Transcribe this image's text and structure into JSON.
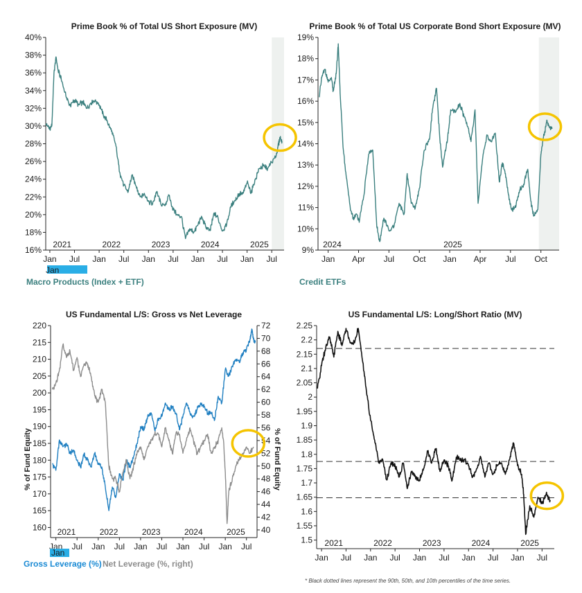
{
  "colors": {
    "teal": "#3a7f7e",
    "blue": "#1f7fc1",
    "gray": "#8c8c8c",
    "black": "#111111",
    "highlight_circle": "#f5c400",
    "shade": "#eef1ef",
    "legend_teal": "#3a7f7e",
    "legend_blue": "#1a8ad4",
    "legend_gray": "#8c8c8c",
    "tag_blue": "#2aaee6"
  },
  "legends": {
    "tl_tag": "Jan",
    "tl_label": "Macro Products (Index + ETF)",
    "tr_label": "Credit ETFs",
    "bl_tag": "Jan",
    "bl_gross": "Gross Leverage (%)",
    "bl_net": "Net Leverage (%, right)"
  },
  "footnote": "* Black dotted lines represent the 90th, 50th, and 10th percentiles of the time series.",
  "chart_data": [
    {
      "id": "tl",
      "type": "line",
      "title": "Prime Book % of Total US Short Exposure (MV)",
      "ylim": [
        16,
        40
      ],
      "ymin": 16,
      "ymax": 40,
      "yticks": [
        16,
        18,
        20,
        22,
        24,
        26,
        28,
        30,
        32,
        34,
        36,
        38,
        40
      ],
      "ytick_labels": [
        "16%",
        "18%",
        "20%",
        "22%",
        "24%",
        "26%",
        "28%",
        "30%",
        "32%",
        "34%",
        "36%",
        "38%",
        "40%"
      ],
      "xmin": 0,
      "xmax": 58,
      "year_ticks": [
        {
          "pos": 4,
          "label": "2021"
        },
        {
          "pos": 16,
          "label": "2022"
        },
        {
          "pos": 28,
          "label": "2023"
        },
        {
          "pos": 40,
          "label": "2024"
        },
        {
          "pos": 52,
          "label": "2025"
        }
      ],
      "month_ticks": [
        {
          "pos": 1,
          "label": "Jan"
        },
        {
          "pos": 7,
          "label": "Jul"
        },
        {
          "pos": 13,
          "label": "Jan"
        },
        {
          "pos": 19,
          "label": "Jul"
        },
        {
          "pos": 25,
          "label": "Jan"
        },
        {
          "pos": 31,
          "label": "Jul"
        },
        {
          "pos": 37,
          "label": "Jan"
        },
        {
          "pos": 43,
          "label": "Jul"
        },
        {
          "pos": 49,
          "label": "Jan"
        },
        {
          "pos": 55,
          "label": "Jul"
        }
      ],
      "shade_from": 55,
      "highlight": [
        57,
        28.7
      ],
      "series": [
        {
          "name": "Macro Products (Index + ETF)",
          "color": "teal",
          "x": [
            0,
            0.5,
            1,
            1.5,
            2,
            2.5,
            3,
            4,
            5,
            6,
            7,
            8,
            9,
            10,
            11,
            12,
            13,
            14,
            15,
            16,
            17,
            18,
            19,
            20,
            21,
            22,
            23,
            24,
            25,
            26,
            27,
            28,
            29,
            30,
            31,
            32,
            33,
            34,
            35,
            36,
            37,
            38,
            39,
            40,
            41,
            42,
            43,
            44,
            45,
            46,
            47,
            48,
            49,
            50,
            51,
            52,
            53,
            54,
            55,
            56,
            56.5,
            57,
            57.5
          ],
          "y": [
            30.2,
            30.0,
            29.6,
            30.1,
            36.0,
            37.8,
            36.3,
            35.0,
            33.2,
            32.3,
            32.9,
            32.4,
            32.7,
            32.0,
            32.6,
            32.9,
            32.4,
            31.3,
            30.5,
            29.4,
            28.0,
            24.8,
            23.3,
            22.5,
            24.5,
            23.2,
            22.0,
            22.4,
            21.5,
            21.2,
            22.6,
            21.2,
            21.0,
            22.2,
            20.6,
            20.0,
            19.8,
            17.3,
            18.4,
            18.0,
            18.8,
            19.7,
            18.5,
            18.2,
            20.2,
            19.5,
            18.2,
            18.8,
            20.9,
            21.6,
            22.3,
            22.4,
            23.6,
            22.5,
            24.0,
            25.2,
            25.5,
            25.2,
            25.9,
            26.5,
            27.6,
            28.7,
            28.3
          ]
        }
      ]
    },
    {
      "id": "tr",
      "type": "line",
      "title": "Prime Book % of Total US Corporate Bond Short Exposure (MV)",
      "ylim": [
        9,
        19
      ],
      "ymin": 9,
      "ymax": 19,
      "yticks": [
        9,
        10,
        11,
        12,
        13,
        14,
        15,
        16,
        17,
        18,
        19
      ],
      "ytick_labels": [
        "9%",
        "10%",
        "11%",
        "12%",
        "13%",
        "14%",
        "15%",
        "16%",
        "17%",
        "18%",
        "19%"
      ],
      "xmin": -1,
      "xmax": 22.8,
      "year_ticks": [
        {
          "pos": 0.4,
          "label": "2024"
        },
        {
          "pos": 12.3,
          "label": "2025"
        }
      ],
      "month_ticks": [
        {
          "pos": 0,
          "label": "Jan"
        },
        {
          "pos": 3,
          "label": "Apr"
        },
        {
          "pos": 6,
          "label": "Jul"
        },
        {
          "pos": 9,
          "label": "Oct"
        },
        {
          "pos": 12,
          "label": "Jan"
        },
        {
          "pos": 15,
          "label": "Apr"
        },
        {
          "pos": 18,
          "label": "Jul"
        },
        {
          "pos": 21,
          "label": "Oct"
        }
      ],
      "shade_from": 20.8,
      "highlight": [
        21.4,
        14.8
      ],
      "series": [
        {
          "name": "Credit ETFs",
          "color": "teal",
          "x": [
            -0.9,
            -0.6,
            -0.3,
            0,
            0.3,
            0.5,
            0.8,
            1.0,
            1.2,
            1.5,
            1.8,
            2.2,
            2.5,
            2.8,
            3.1,
            3.5,
            4.0,
            4.4,
            4.8,
            5.1,
            5.5,
            6.0,
            6.5,
            7.0,
            7.5,
            7.8,
            8.2,
            8.6,
            9.0,
            9.5,
            10.0,
            10.3,
            10.7,
            11.0,
            11.3,
            11.8,
            12.1,
            12.6,
            13.0,
            13.4,
            13.8,
            14.1,
            14.5,
            14.8,
            15.3,
            15.7,
            16.1,
            16.5,
            16.9,
            17.2,
            17.5,
            17.8,
            18.1,
            18.5,
            18.9,
            19.3,
            19.7,
            20.0,
            20.3,
            20.7,
            21.0,
            21.2,
            21.4,
            21.6,
            21.8,
            22.1
          ],
          "y": [
            16.2,
            17.2,
            17.5,
            16.9,
            17.1,
            16.5,
            17.3,
            18.7,
            16.2,
            13.7,
            12.4,
            10.9,
            10.5,
            10.7,
            10.4,
            11.5,
            13.5,
            13.7,
            10.1,
            9.4,
            10.5,
            9.9,
            10.1,
            11.2,
            10.7,
            12.6,
            11.2,
            11.0,
            11.9,
            13.7,
            14.2,
            15.6,
            16.6,
            14.4,
            12.9,
            14.3,
            15.6,
            15.5,
            15.9,
            15.3,
            14.8,
            14.1,
            15.6,
            11.2,
            13.5,
            14.4,
            14.1,
            14.5,
            12.2,
            13.1,
            12.6,
            11.6,
            10.9,
            11.0,
            11.8,
            12.1,
            12.8,
            11.3,
            10.6,
            10.9,
            13.5,
            14.2,
            14.6,
            15.1,
            14.8,
            14.7
          ]
        }
      ]
    },
    {
      "id": "bl",
      "type": "line",
      "title": "US Fundamental L/S: Gross vs Net Leverage",
      "ylabel": "% of Fund Equity",
      "ylabel_right": "% of Fund Equity",
      "ylim": [
        157,
        220
      ],
      "ymin": 157,
      "ymax": 220,
      "yticks": [
        160,
        165,
        170,
        175,
        180,
        185,
        190,
        195,
        200,
        205,
        210,
        215,
        220
      ],
      "ytick_labels": [
        "160",
        "165",
        "170",
        "175",
        "180",
        "185",
        "190",
        "195",
        "200",
        "205",
        "210",
        "215",
        "220"
      ],
      "ylim_right": [
        38.8,
        72
      ],
      "ymin2": 38.8,
      "ymax2": 72,
      "yticks_right": [
        40,
        42,
        44,
        46,
        48,
        50,
        52,
        54,
        56,
        58,
        60,
        62,
        64,
        66,
        68,
        70,
        72
      ],
      "ytick_labels_right": [
        "40",
        "42",
        "44",
        "46",
        "48",
        "50",
        "52",
        "54",
        "56",
        "58",
        "60",
        "62",
        "64",
        "66",
        "68",
        "70",
        "72"
      ],
      "xmin": -0.5,
      "xmax": 58,
      "year_ticks": [
        {
          "pos": 4,
          "label": "2021"
        },
        {
          "pos": 16,
          "label": "2022"
        },
        {
          "pos": 28,
          "label": "2023"
        },
        {
          "pos": 40,
          "label": "2024"
        },
        {
          "pos": 52,
          "label": "2025"
        }
      ],
      "month_ticks": [
        {
          "pos": 1,
          "label": "Jan"
        },
        {
          "pos": 7,
          "label": "Jul"
        },
        {
          "pos": 13,
          "label": "Jan"
        },
        {
          "pos": 19,
          "label": "Jul"
        },
        {
          "pos": 25,
          "label": "Jan"
        },
        {
          "pos": 31,
          "label": "Jul"
        },
        {
          "pos": 37,
          "label": "Jan"
        },
        {
          "pos": 43,
          "label": "Jul"
        },
        {
          "pos": 49,
          "label": "Jan"
        },
        {
          "pos": 55,
          "label": "Jul"
        }
      ],
      "highlight": [
        55.5,
        185
      ],
      "series": [
        {
          "name": "Gross Leverage (%)",
          "color": "blue",
          "axis": "left",
          "x": [
            0,
            1,
            2,
            3,
            4,
            5,
            6,
            7,
            8,
            9,
            10,
            11,
            12,
            13,
            14,
            15,
            16,
            17,
            18,
            19,
            20,
            21,
            22,
            23,
            24,
            25,
            26,
            27,
            28,
            29,
            30,
            31,
            32,
            33,
            34,
            35,
            36,
            37,
            38,
            39,
            40,
            41,
            42,
            43,
            44,
            45,
            46,
            47,
            48,
            49,
            50,
            51,
            52,
            53,
            54,
            55,
            56,
            56.5,
            57,
            57.5
          ],
          "y": [
            179,
            177,
            186,
            184,
            185,
            182,
            183,
            180,
            178,
            182,
            180,
            178,
            182,
            179,
            178,
            172,
            165,
            172,
            169,
            176,
            174,
            180,
            178,
            181,
            185,
            190,
            189,
            193,
            194,
            189,
            192,
            193,
            197,
            195,
            196,
            194,
            189,
            193,
            197,
            194,
            193,
            195,
            197,
            196,
            194,
            194,
            192,
            199,
            197,
            207,
            205,
            208,
            210,
            209,
            212,
            213,
            216,
            219,
            216,
            215
          ]
        },
        {
          "name": "Net Leverage (%, right)",
          "color": "gray",
          "axis": "right",
          "x": [
            0,
            1,
            2,
            3,
            4,
            5,
            6,
            7,
            8,
            9,
            10,
            11,
            12,
            13,
            14,
            15,
            16,
            17,
            18,
            19,
            20,
            21,
            22,
            23,
            24,
            25,
            26,
            27,
            28,
            29,
            30,
            31,
            32,
            33,
            34,
            35,
            36,
            37,
            38,
            39,
            40,
            41,
            42,
            43,
            44,
            45,
            46,
            47,
            48,
            48.5,
            49,
            49.5,
            50,
            51,
            52,
            53,
            54,
            55,
            56,
            57
          ],
          "y": [
            62,
            63,
            65,
            69,
            67,
            68,
            65,
            67,
            64,
            66,
            66,
            64,
            61,
            60,
            62,
            60,
            50,
            48,
            48,
            46,
            49,
            51,
            48,
            50,
            52,
            53,
            51,
            53,
            54,
            55,
            55,
            53,
            56,
            54,
            52,
            55,
            55,
            52,
            54,
            56,
            54,
            52,
            53,
            54,
            55,
            52,
            53,
            54,
            56,
            54,
            49,
            41,
            46,
            48,
            50,
            51,
            52,
            53,
            52,
            53
          ]
        }
      ]
    },
    {
      "id": "br",
      "type": "line",
      "title": "US Fundamental L/S: Long/Short Ratio (MV)",
      "ylim": [
        1.47,
        2.25
      ],
      "ymin": 1.47,
      "ymax": 2.25,
      "yticks": [
        1.5,
        1.55,
        1.6,
        1.65,
        1.7,
        1.75,
        1.8,
        1.85,
        1.9,
        1.95,
        2,
        2.05,
        2.1,
        2.15,
        2.2,
        2.25
      ],
      "ytick_labels": [
        "1.5",
        "1.55",
        "1.6",
        "1.65",
        "1.7",
        "1.75",
        "1.8",
        "1.85",
        "1.9",
        "1.95",
        "2",
        "2.05",
        "2.1",
        "2.15",
        "2.2",
        "2.25"
      ],
      "percentile_lines": [
        2.17,
        1.775,
        1.648
      ],
      "xmin": -0.2,
      "xmax": 58,
      "year_ticks": [
        {
          "pos": 4,
          "label": "2021"
        },
        {
          "pos": 16,
          "label": "2022"
        },
        {
          "pos": 28,
          "label": "2023"
        },
        {
          "pos": 40,
          "label": "2024"
        },
        {
          "pos": 52,
          "label": "2025"
        }
      ],
      "month_ticks": [
        {
          "pos": 1,
          "label": "Jan"
        },
        {
          "pos": 7,
          "label": "Jul"
        },
        {
          "pos": 13,
          "label": "Jan"
        },
        {
          "pos": 19,
          "label": "Jul"
        },
        {
          "pos": 25,
          "label": "Jan"
        },
        {
          "pos": 31,
          "label": "Jul"
        },
        {
          "pos": 37,
          "label": "Jan"
        },
        {
          "pos": 43,
          "label": "Jul"
        },
        {
          "pos": 49,
          "label": "Jan"
        },
        {
          "pos": 55,
          "label": "Jul"
        }
      ],
      "highlight": [
        56.2,
        1.655
      ],
      "series": [
        {
          "name": "Long/Short Ratio",
          "color": "black",
          "x": [
            0,
            1,
            2,
            3,
            4,
            5,
            6,
            7,
            8,
            9,
            10,
            11,
            12,
            13,
            14,
            15,
            16,
            17,
            18,
            19,
            20,
            21,
            22,
            23,
            24,
            25,
            26,
            27,
            28,
            29,
            30,
            31,
            32,
            33,
            34,
            35,
            36,
            37,
            38,
            39,
            40,
            41,
            42,
            43,
            44,
            45,
            46,
            47,
            48,
            49,
            50,
            50.5,
            51,
            52,
            53,
            54,
            55,
            56,
            57
          ],
          "y": [
            2.03,
            2.11,
            2.17,
            2.21,
            2.14,
            2.23,
            2.18,
            2.24,
            2.19,
            2.19,
            2.24,
            2.13,
            2.02,
            1.92,
            1.85,
            1.77,
            1.78,
            1.71,
            1.77,
            1.76,
            1.72,
            1.77,
            1.68,
            1.74,
            1.72,
            1.71,
            1.75,
            1.81,
            1.77,
            1.82,
            1.74,
            1.78,
            1.76,
            1.71,
            1.79,
            1.78,
            1.78,
            1.76,
            1.72,
            1.75,
            1.79,
            1.72,
            1.77,
            1.73,
            1.76,
            1.77,
            1.73,
            1.78,
            1.84,
            1.76,
            1.73,
            1.66,
            1.52,
            1.62,
            1.58,
            1.65,
            1.63,
            1.66,
            1.64
          ]
        }
      ]
    }
  ]
}
